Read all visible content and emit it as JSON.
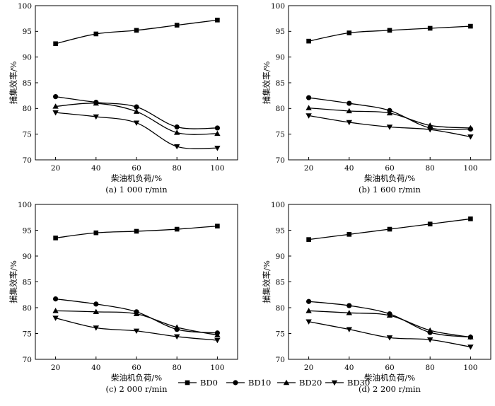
{
  "chart_data": [
    {
      "type": "line",
      "caption": "(a)  1 000 r/min",
      "xlabel": "柴油机负荷/%",
      "ylabel": "捕集效率/%",
      "x": [
        20,
        40,
        60,
        80,
        100
      ],
      "xlim": [
        10,
        110
      ],
      "ylim": [
        70,
        100
      ],
      "xticks": [
        "20",
        "40",
        "60",
        "80",
        "100"
      ],
      "yticks": [
        "70",
        "75",
        "80",
        "85",
        "90",
        "95",
        "100"
      ],
      "series": [
        {
          "name": "BD0",
          "values": [
            92.6,
            94.5,
            95.2,
            96.2,
            97.2
          ]
        },
        {
          "name": "BD10",
          "values": [
            82.3,
            81.2,
            80.3,
            76.4,
            76.2
          ]
        },
        {
          "name": "BD20",
          "values": [
            80.4,
            81.0,
            79.4,
            75.3,
            75.1
          ]
        },
        {
          "name": "BD30",
          "values": [
            79.2,
            78.4,
            77.2,
            72.6,
            72.3
          ]
        }
      ]
    },
    {
      "type": "line",
      "caption": "(b)  1 600 r/min",
      "xlabel": "柴油机负荷/%",
      "ylabel": "捕集效率/%",
      "x": [
        20,
        40,
        60,
        80,
        100
      ],
      "xlim": [
        10,
        110
      ],
      "ylim": [
        70,
        100
      ],
      "xticks": [
        "20",
        "40",
        "60",
        "80",
        "100"
      ],
      "yticks": [
        "70",
        "75",
        "80",
        "85",
        "90",
        "95",
        "100"
      ],
      "series": [
        {
          "name": "BD0",
          "values": [
            93.1,
            94.7,
            95.2,
            95.6,
            96.0
          ]
        },
        {
          "name": "BD10",
          "values": [
            82.1,
            81.0,
            79.6,
            76.2,
            76.0
          ]
        },
        {
          "name": "BD20",
          "values": [
            80.1,
            79.5,
            79.1,
            76.7,
            76.2
          ]
        },
        {
          "name": "BD30",
          "values": [
            78.6,
            77.3,
            76.4,
            75.9,
            74.5
          ]
        }
      ]
    },
    {
      "type": "line",
      "caption": "(c)  2 000 r/min",
      "xlabel": "柴油机负荷/%",
      "ylabel": "捕集效率/%",
      "x": [
        20,
        40,
        60,
        80,
        100
      ],
      "xlim": [
        10,
        110
      ],
      "ylim": [
        70,
        100
      ],
      "xticks": [
        "20",
        "40",
        "60",
        "80",
        "100"
      ],
      "yticks": [
        "70",
        "75",
        "80",
        "85",
        "90",
        "95",
        "100"
      ],
      "series": [
        {
          "name": "BD0",
          "values": [
            93.5,
            94.5,
            94.8,
            95.2,
            95.8
          ]
        },
        {
          "name": "BD10",
          "values": [
            81.7,
            80.7,
            79.2,
            75.8,
            75.1
          ]
        },
        {
          "name": "BD20",
          "values": [
            79.4,
            79.2,
            78.8,
            76.2,
            74.7
          ]
        },
        {
          "name": "BD30",
          "values": [
            78.0,
            76.1,
            75.5,
            74.4,
            73.7
          ]
        }
      ]
    },
    {
      "type": "line",
      "caption": "(d)  2 200 r/min",
      "xlabel": "柴油机负荷/%",
      "ylabel": "捕集效率/%",
      "x": [
        20,
        40,
        60,
        80,
        100
      ],
      "xlim": [
        10,
        110
      ],
      "ylim": [
        70,
        100
      ],
      "xticks": [
        "20",
        "40",
        "60",
        "80",
        "100"
      ],
      "yticks": [
        "70",
        "75",
        "80",
        "85",
        "90",
        "95",
        "100"
      ],
      "series": [
        {
          "name": "BD0",
          "values": [
            93.2,
            94.2,
            95.2,
            96.2,
            97.2
          ]
        },
        {
          "name": "BD10",
          "values": [
            81.2,
            80.4,
            78.8,
            75.2,
            74.3
          ]
        },
        {
          "name": "BD20",
          "values": [
            79.4,
            79.0,
            78.5,
            75.6,
            74.3
          ]
        },
        {
          "name": "BD30",
          "values": [
            77.3,
            75.8,
            74.2,
            73.8,
            72.4
          ]
        }
      ]
    }
  ],
  "legend": [
    {
      "name": "BD0",
      "marker": "square"
    },
    {
      "name": "BD10",
      "marker": "circle"
    },
    {
      "name": "BD20",
      "marker": "triangle-up"
    },
    {
      "name": "BD30",
      "marker": "triangle-down"
    }
  ],
  "colors": {
    "line": "#000000",
    "background": "#ffffff"
  }
}
